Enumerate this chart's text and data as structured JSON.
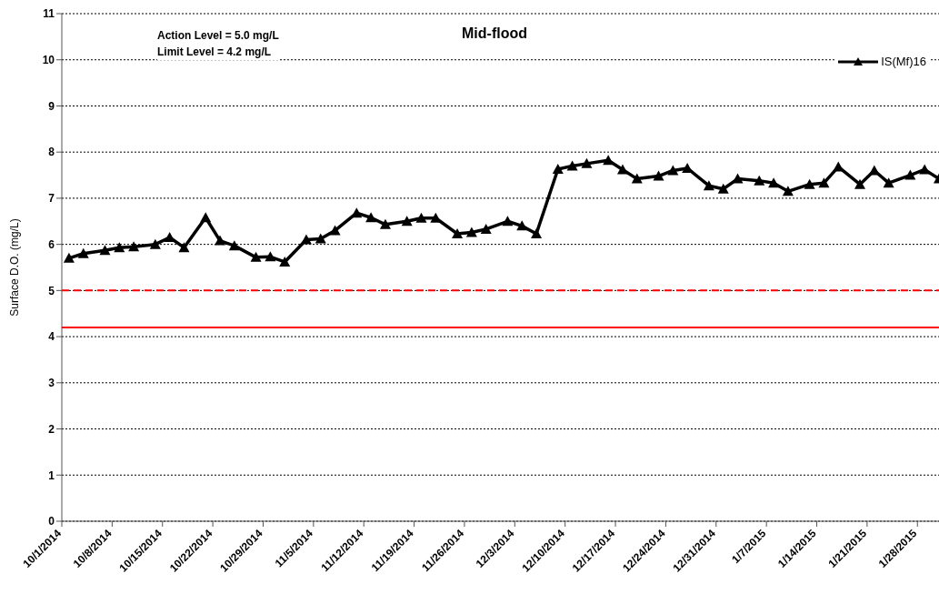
{
  "chart_data": {
    "type": "line",
    "title": "Mid-flood",
    "ylabel": "Surface D.O. (mg/L)",
    "annotations": [
      "Action Level = 5.0 mg/L",
      "Limit Level = 4.2 mg/L"
    ],
    "x": [
      "2014-10-02",
      "2014-10-04",
      "2014-10-07",
      "2014-10-09",
      "2014-10-11",
      "2014-10-14",
      "2014-10-16",
      "2014-10-18",
      "2014-10-21",
      "2014-10-23",
      "2014-10-25",
      "2014-10-28",
      "2014-10-30",
      "2014-11-01",
      "2014-11-04",
      "2014-11-06",
      "2014-11-08",
      "2014-11-11",
      "2014-11-13",
      "2014-11-15",
      "2014-11-18",
      "2014-11-20",
      "2014-11-22",
      "2014-11-25",
      "2014-11-27",
      "2014-11-29",
      "2014-12-02",
      "2014-12-04",
      "2014-12-06",
      "2014-12-09",
      "2014-12-11",
      "2014-12-13",
      "2014-12-16",
      "2014-12-18",
      "2014-12-20",
      "2014-12-23",
      "2014-12-25",
      "2014-12-27",
      "2014-12-30",
      "2015-01-01",
      "2015-01-03",
      "2015-01-06",
      "2015-01-08",
      "2015-01-10",
      "2015-01-13",
      "2015-01-15",
      "2015-01-17",
      "2015-01-20",
      "2015-01-22",
      "2015-01-24",
      "2015-01-27",
      "2015-01-29",
      "2015-01-31"
    ],
    "series": [
      {
        "name": "IS(Mf)16",
        "color": "#000000",
        "values": [
          5.7,
          5.8,
          5.87,
          5.93,
          5.95,
          6.0,
          6.15,
          5.93,
          6.58,
          6.08,
          5.97,
          5.72,
          5.73,
          5.62,
          6.1,
          6.12,
          6.3,
          6.68,
          6.58,
          6.43,
          6.5,
          6.57,
          6.57,
          6.23,
          6.26,
          6.33,
          6.5,
          6.4,
          6.23,
          7.63,
          7.7,
          7.75,
          7.82,
          7.62,
          7.42,
          7.48,
          7.6,
          7.65,
          7.27,
          7.2,
          7.42,
          7.38,
          7.33,
          7.15,
          7.3,
          7.33,
          7.68,
          7.3,
          7.6,
          7.33,
          7.5,
          7.62,
          7.42
        ]
      }
    ],
    "xlim": [
      "2014-10-01",
      "2015-01-31"
    ],
    "xticks": [
      {
        "value": "2014-10-01",
        "label": "10/1/2014"
      },
      {
        "value": "2014-10-08",
        "label": "10/8/2014"
      },
      {
        "value": "2014-10-15",
        "label": "10/15/2014"
      },
      {
        "value": "2014-10-22",
        "label": "10/22/2014"
      },
      {
        "value": "2014-10-29",
        "label": "10/29/2014"
      },
      {
        "value": "2014-11-05",
        "label": "11/5/2014"
      },
      {
        "value": "2014-11-12",
        "label": "11/12/2014"
      },
      {
        "value": "2014-11-19",
        "label": "11/19/2014"
      },
      {
        "value": "2014-11-26",
        "label": "11/26/2014"
      },
      {
        "value": "2014-12-03",
        "label": "12/3/2014"
      },
      {
        "value": "2014-12-10",
        "label": "12/10/2014"
      },
      {
        "value": "2014-12-17",
        "label": "12/17/2014"
      },
      {
        "value": "2014-12-24",
        "label": "12/24/2014"
      },
      {
        "value": "2014-12-31",
        "label": "12/31/2014"
      },
      {
        "value": "2015-01-07",
        "label": "1/7/2015"
      },
      {
        "value": "2015-01-14",
        "label": "1/14/2015"
      },
      {
        "value": "2015-01-21",
        "label": "1/21/2015"
      },
      {
        "value": "2015-01-28",
        "label": "1/28/2015"
      }
    ],
    "ylim": [
      0,
      11
    ],
    "yticks": [
      0,
      1,
      2,
      3,
      4,
      5,
      6,
      7,
      8,
      9,
      10,
      11
    ],
    "ref_lines": [
      {
        "axis": "y",
        "value": 5.0,
        "color": "#ff0000",
        "line_style": "dashed"
      },
      {
        "axis": "y",
        "value": 4.2,
        "color": "#ff0000",
        "line_style": "solid"
      }
    ],
    "grid": "y",
    "legend": "top right",
    "marker": "triangle",
    "line_style": "solid"
  }
}
